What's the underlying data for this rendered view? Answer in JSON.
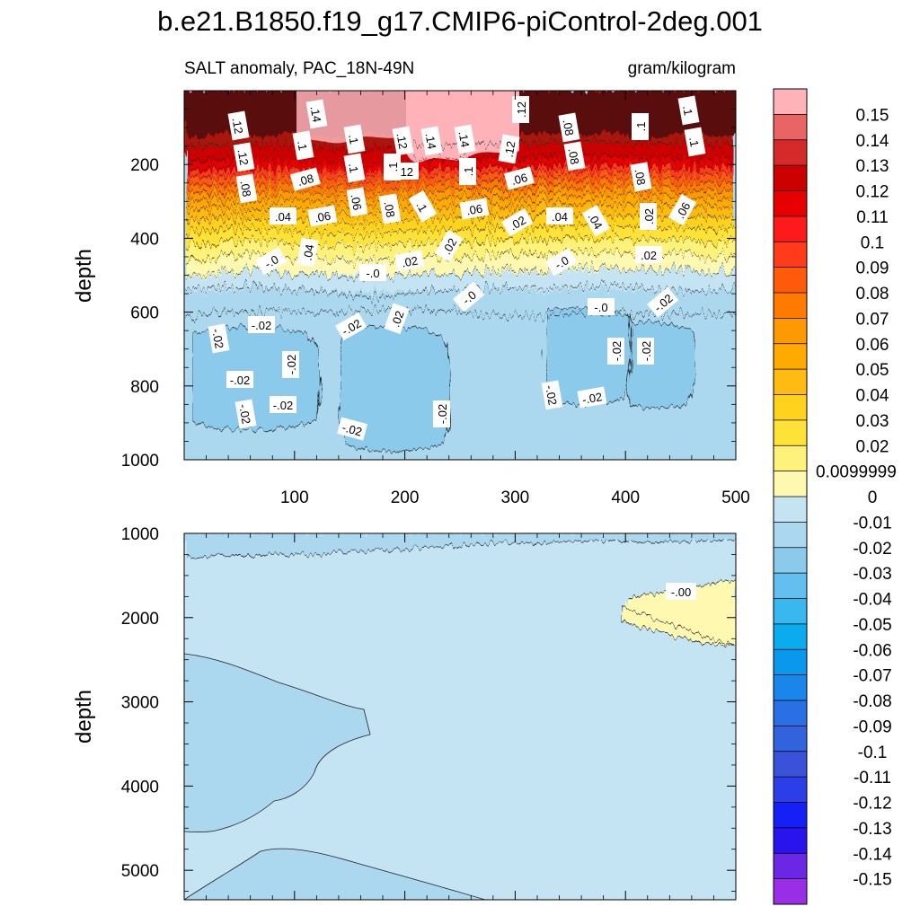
{
  "chart_data": {
    "type": "contour",
    "title": "b.e21.B1850.f19_g17.CMIP6-piControl-2deg.001",
    "subtitle_left": "SALT anomaly, PAC_18N-49N",
    "subtitle_right": "gram/kilogram",
    "colorbar": {
      "labels": [
        "0.15",
        "0.14",
        "0.13",
        "0.12",
        "0.11",
        "0.1",
        "0.09",
        "0.08",
        "0.07",
        "0.06",
        "0.05",
        "0.04",
        "0.03",
        "0.02",
        "0.0099999",
        "0",
        "-0.01",
        "-0.02",
        "-0.03",
        "-0.04",
        "-0.05",
        "-0.06",
        "-0.07",
        "-0.08",
        "-0.09",
        "-0.1",
        "-0.11",
        "-0.12",
        "-0.13",
        "-0.14",
        "-0.15"
      ],
      "colors": [
        "#ffb3b8",
        "#e96464",
        "#d42a2a",
        "#cc0000",
        "#e60000",
        "#ff1a1a",
        "#ff3b1a",
        "#ff5a0a",
        "#ff7a00",
        "#ff9900",
        "#ffaa00",
        "#ffbb11",
        "#ffd21e",
        "#ffe238",
        "#fff27a",
        "#fff8b0",
        "#c4e4f4",
        "#abd8ee",
        "#8ccaec",
        "#63bff0",
        "#39b7ef",
        "#0aacef",
        "#0a98ee",
        "#1a85ea",
        "#2a70e4",
        "#3362de",
        "#3a52da",
        "#2c3ee8",
        "#1420f5",
        "#2a14ee",
        "#6c26e6",
        "#9a2ee6"
      ]
    },
    "top_panel": {
      "xlim": [
        0,
        500
      ],
      "ylim": [
        1000,
        0
      ],
      "xticks": [
        "100",
        "200",
        "300",
        "400",
        "500"
      ],
      "yticks": [
        "200",
        "400",
        "600",
        "800",
        "1000"
      ],
      "ylabel": "depth"
    },
    "bottom_panel": {
      "xlim": [
        0,
        500
      ],
      "ylim": [
        5350,
        1000
      ],
      "yticks": [
        "1000",
        "2000",
        "3000",
        "4000",
        "5000"
      ],
      "ylabel": "depth"
    },
    "contour_labels_top": [
      ".12",
      ".14",
      ".1",
      ".12",
      ".14",
      ".14",
      ".12",
      ".08",
      ".1",
      ".1",
      ".12",
      ".1",
      ".12",
      ".1",
      ".08",
      ".1",
      ".12",
      ".1",
      ".1",
      ".08",
      ".08",
      ".08",
      ".1",
      ".06",
      ".08",
      ".06",
      ".08",
      ".04",
      ".06",
      ".08",
      ".1",
      ".06",
      ".02",
      ".04",
      ".04",
      ".02",
      ".06",
      ".02",
      ".04",
      "-.0",
      ".02",
      "-.0",
      ".02",
      "-.0",
      "-.0",
      "-.0",
      "-.02",
      "-.02",
      "-.02",
      "-.02",
      ".02",
      "-.02",
      "-.02",
      "-.02",
      "-.02",
      "-.02",
      "-.02",
      "-.02",
      "-.02",
      "-.02",
      "-.02"
    ],
    "contour_labels_bottom": [
      "-.00"
    ]
  }
}
